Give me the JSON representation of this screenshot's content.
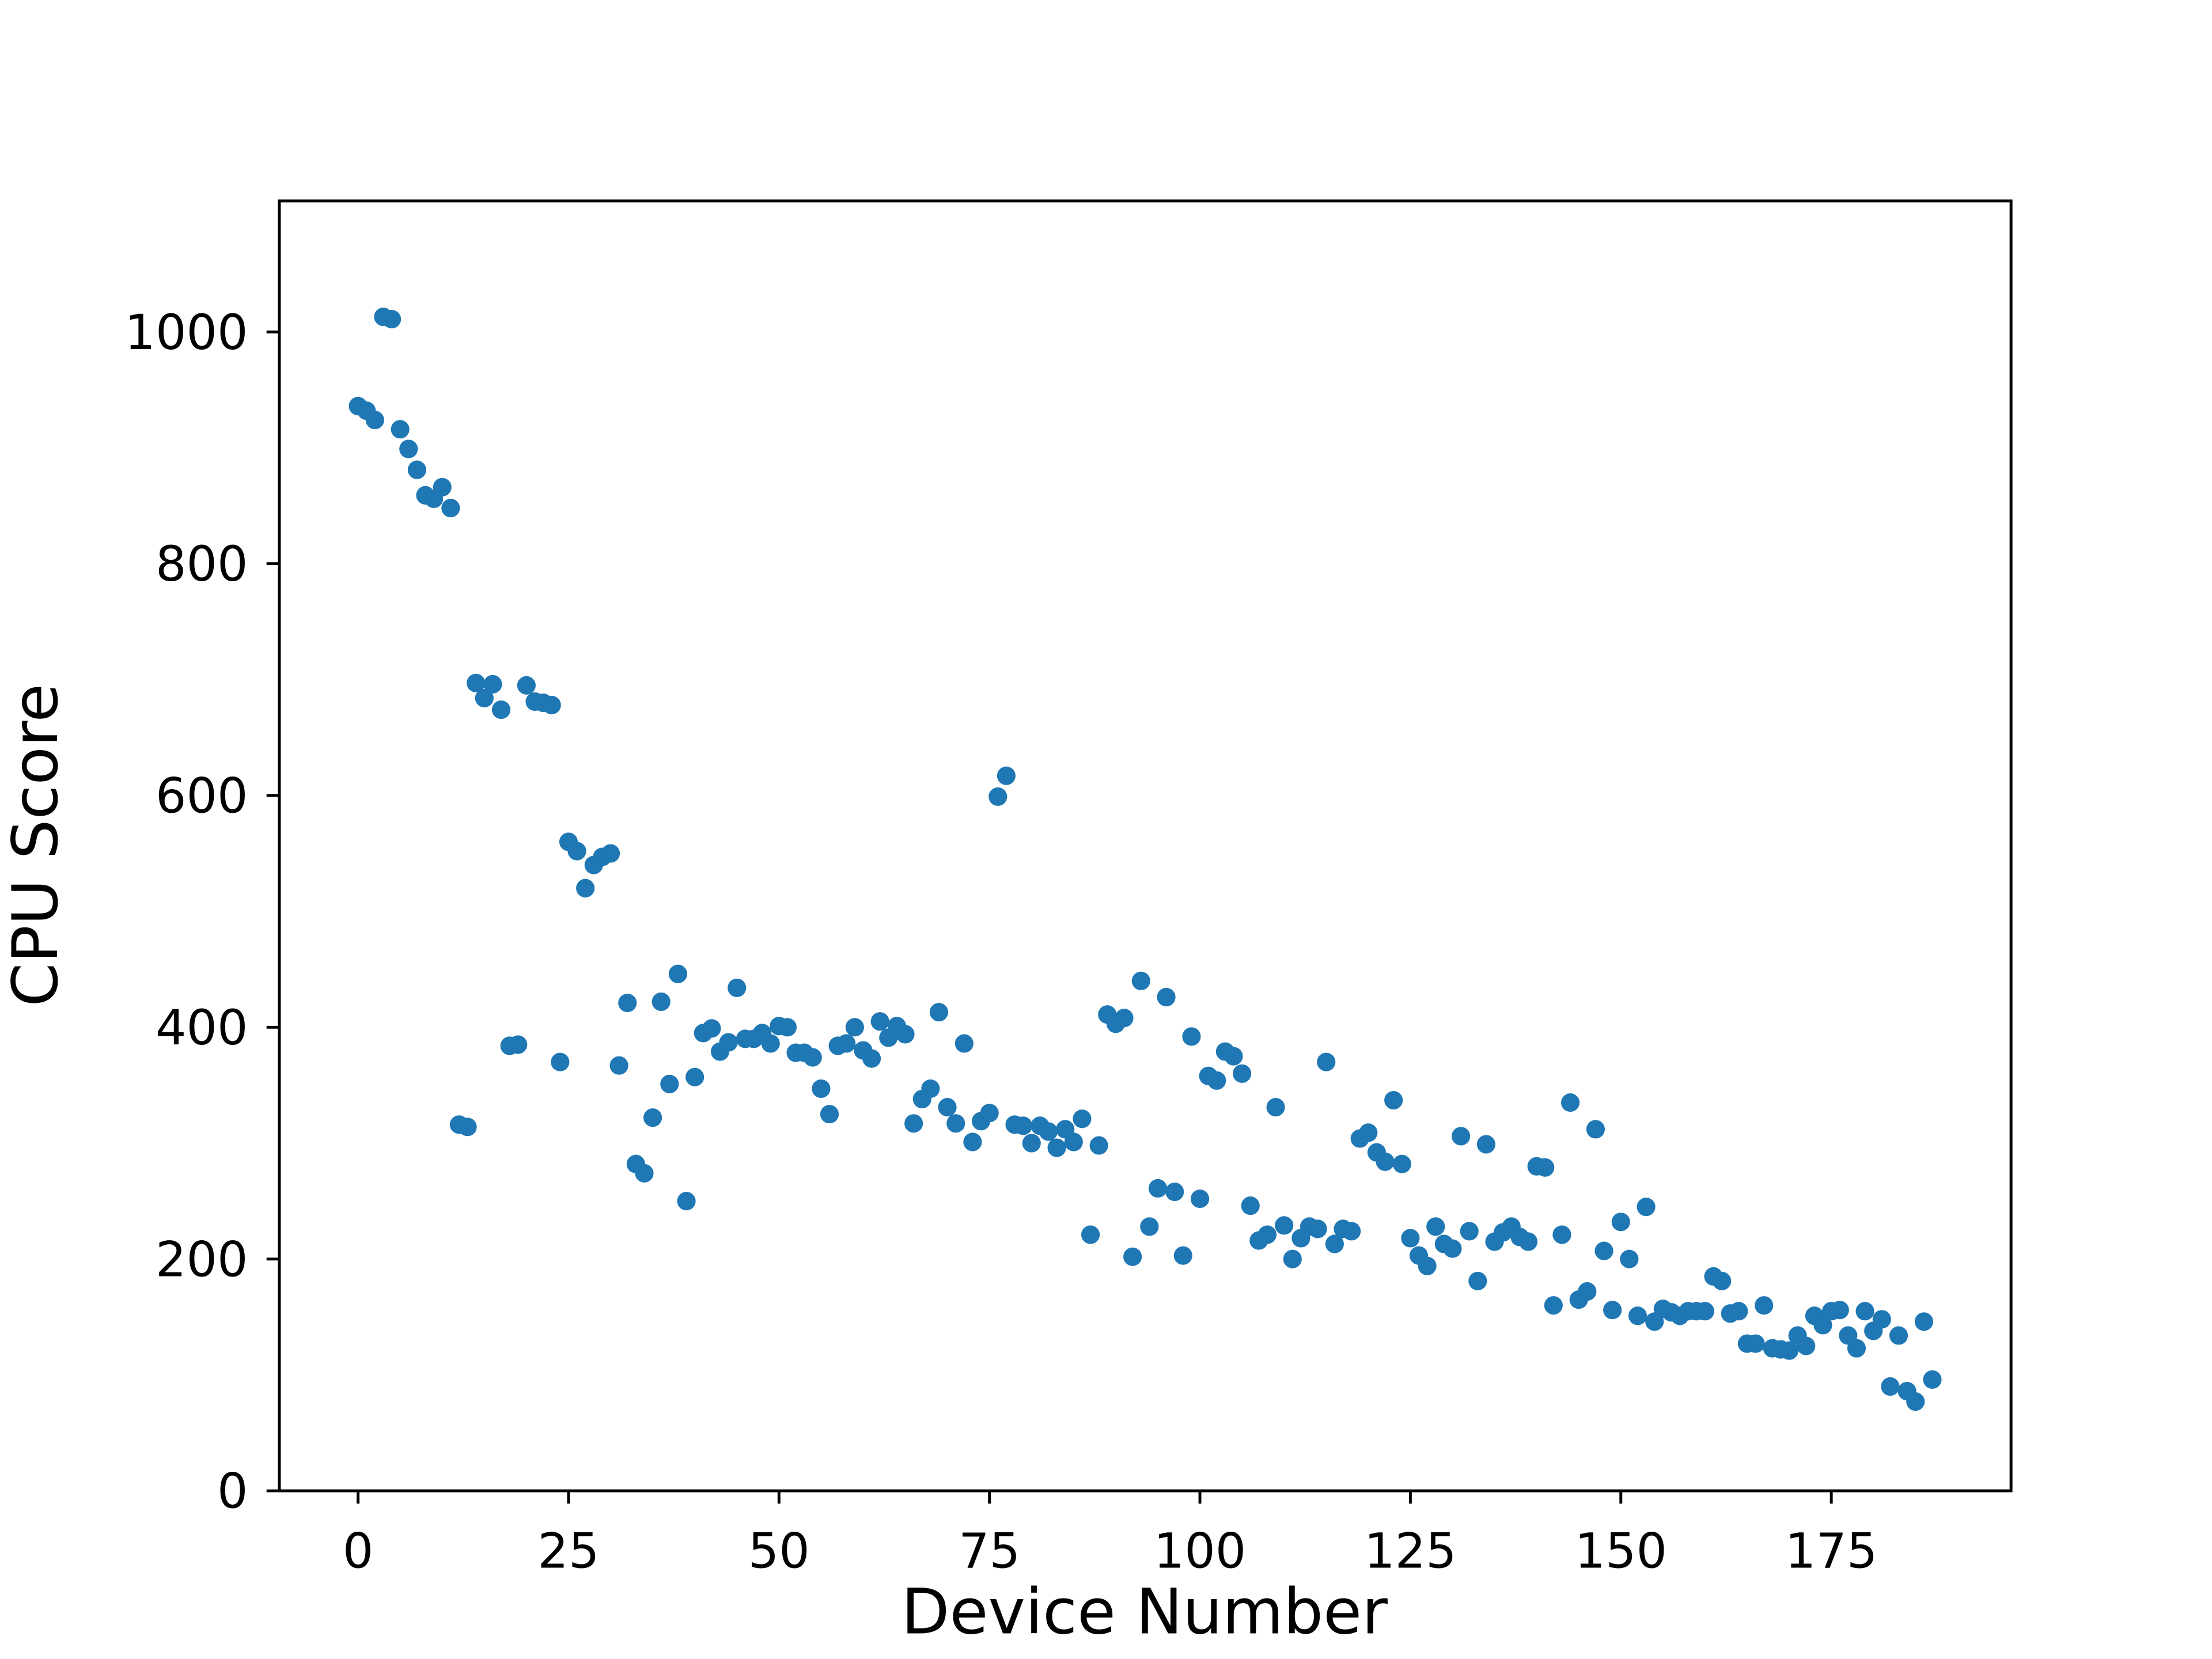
{
  "chart_data": {
    "type": "scatter",
    "xlabel": "Device Number",
    "ylabel": "CPU Score",
    "color": "#1f77b4",
    "x": [
      0,
      1,
      2,
      3,
      4,
      5,
      6,
      7,
      8,
      9,
      10,
      11,
      12,
      13,
      14,
      15,
      16,
      17,
      18,
      19,
      20,
      21,
      22,
      23,
      24,
      25,
      26,
      27,
      28,
      29,
      30,
      31,
      32,
      33,
      34,
      35,
      36,
      37,
      38,
      39,
      40,
      41,
      42,
      43,
      44,
      45,
      46,
      47,
      48,
      49,
      50,
      51,
      52,
      53,
      54,
      55,
      56,
      57,
      58,
      59,
      60,
      61,
      62,
      63,
      64,
      65,
      66,
      67,
      68,
      69,
      70,
      71,
      72,
      73,
      74,
      75,
      76,
      77,
      78,
      79,
      80,
      81,
      82,
      83,
      84,
      85,
      86,
      87,
      88,
      89,
      90,
      91,
      92,
      93,
      94,
      95,
      96,
      97,
      98,
      99,
      100,
      101,
      102,
      103,
      104,
      105,
      106,
      107,
      108,
      109,
      110,
      111,
      112,
      113,
      114,
      115,
      116,
      117,
      118,
      119,
      120,
      121,
      122,
      123,
      124,
      125,
      126,
      127,
      128,
      129,
      130,
      131,
      132,
      133,
      134,
      135,
      136,
      137,
      138,
      139,
      140,
      141,
      142,
      143,
      144,
      145,
      146,
      147,
      148,
      149,
      150,
      151,
      152,
      153,
      154,
      155,
      156,
      157,
      158,
      159,
      160,
      161,
      162,
      163,
      164,
      165,
      166,
      167,
      168,
      169,
      170,
      171,
      172,
      173,
      174,
      175,
      176,
      177,
      178,
      179,
      180,
      181,
      182,
      183,
      184,
      185,
      186,
      187
    ],
    "values": [
      936,
      932,
      924,
      1013,
      1011,
      916,
      899,
      881,
      859,
      856,
      866,
      848,
      316,
      314,
      697,
      684,
      696,
      674,
      384,
      385,
      695,
      681,
      680,
      678,
      370,
      560,
      552,
      520,
      540,
      547,
      550,
      367,
      421,
      282,
      274,
      322,
      422,
      351,
      446,
      250,
      357,
      395,
      399,
      379,
      387,
      434,
      390,
      390,
      395,
      386,
      401,
      400,
      378,
      378,
      374,
      347,
      325,
      384,
      386,
      400,
      380,
      373,
      405,
      391,
      401,
      394,
      317,
      338,
      347,
      413,
      331,
      317,
      386,
      301,
      319,
      326,
      599,
      617,
      316,
      315,
      300,
      315,
      310,
      296,
      312,
      301,
      321,
      221,
      298,
      411,
      403,
      408,
      202,
      440,
      228,
      261,
      426,
      258,
      203,
      392,
      252,
      358,
      354,
      379,
      375,
      360,
      246,
      216,
      221,
      331,
      229,
      200,
      218,
      228,
      226,
      370,
      213,
      226,
      224,
      304,
      309,
      292,
      284,
      337,
      282,
      218,
      203,
      194,
      228,
      213,
      209,
      306,
      224,
      181,
      299,
      215,
      223,
      228,
      219,
      215,
      280,
      279,
      160,
      221,
      335,
      165,
      172,
      312,
      207,
      156,
      232,
      200,
      151,
      245,
      146,
      157,
      154,
      151,
      155,
      155,
      155,
      185,
      181,
      153,
      155,
      127,
      127,
      160,
      123,
      122,
      121,
      134,
      125,
      151,
      143,
      155,
      156,
      134,
      123,
      155,
      138,
      148,
      90,
      134,
      86,
      77,
      146,
      96
    ],
    "xlim": [
      -9.35,
      196.35
    ],
    "ylim": [
      0,
      1113
    ],
    "xticks": [
      0,
      25,
      50,
      75,
      100,
      125,
      150,
      175
    ],
    "yticks": [
      0,
      200,
      400,
      600,
      800,
      1000
    ]
  }
}
